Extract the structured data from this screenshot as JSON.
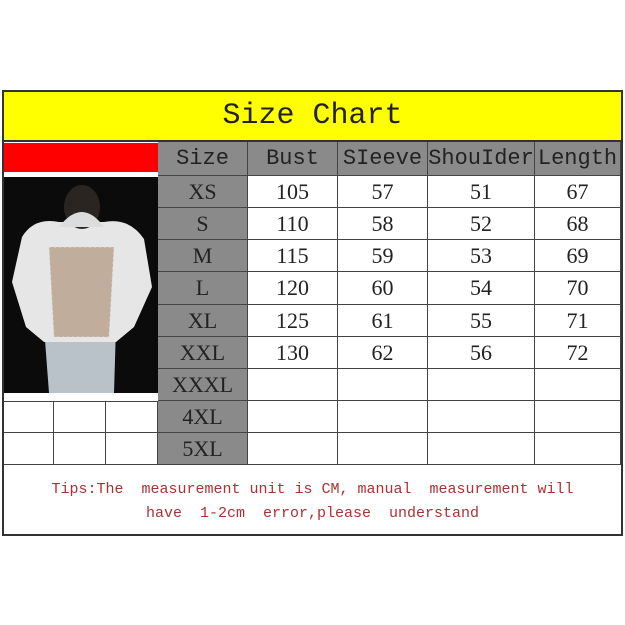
{
  "title": "Size Chart",
  "headers": [
    "Size",
    "Bust",
    "SIeeve",
    "ShouIder",
    "Length"
  ],
  "rows": [
    [
      "XS",
      "105",
      "57",
      "51",
      "67"
    ],
    [
      "S",
      "110",
      "58",
      "52",
      "68"
    ],
    [
      "M",
      "115",
      "59",
      "53",
      "69"
    ],
    [
      "L",
      "120",
      "60",
      "54",
      "70"
    ],
    [
      "XL",
      "125",
      "61",
      "55",
      "71"
    ],
    [
      "XXL",
      "130",
      "62",
      "56",
      "72"
    ],
    [
      "XXXL",
      "",
      "",
      "",
      ""
    ],
    [
      "4XL",
      "",
      "",
      "",
      ""
    ],
    [
      "5XL",
      "",
      "",
      "",
      ""
    ]
  ],
  "tips": {
    "line1": "Tips:The  measurement unit is CM, manual  measurement will",
    "line2": "have  1-2cm  error,please  understand"
  },
  "colors": {
    "title_bg": "#ffff00",
    "accent": "#ff0000",
    "size_col": "#8a8a8a",
    "tips_text": "#aa3333"
  }
}
